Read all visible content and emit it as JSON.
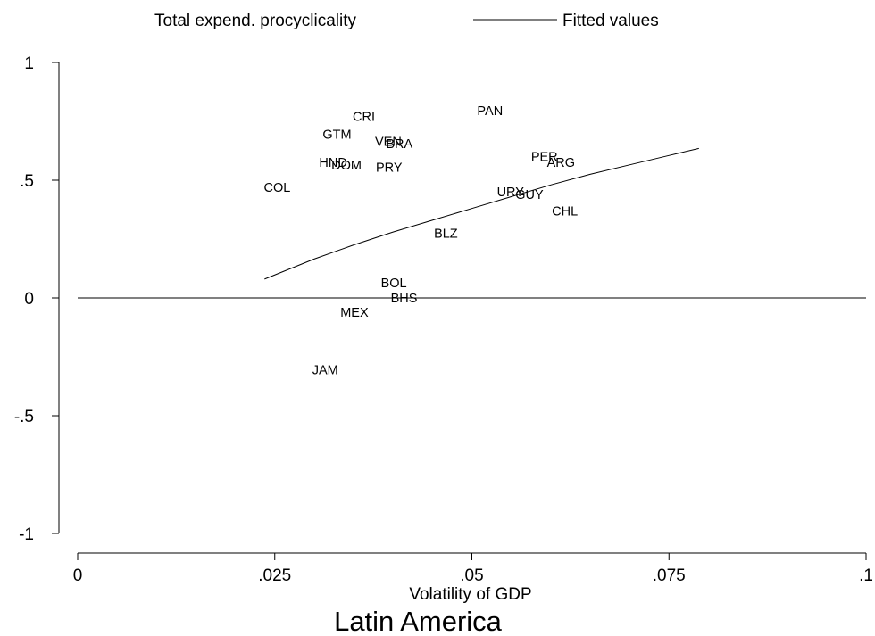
{
  "chart_data": {
    "type": "scatter",
    "xlabel": "Volatility of GDP",
    "ylabel": "",
    "note": "Latin America",
    "xlim": [
      0,
      0.1
    ],
    "ylim": [
      -1,
      1
    ],
    "x_ticks": [
      {
        "value": 0,
        "label": "0"
      },
      {
        "value": 0.025,
        "label": ".025"
      },
      {
        "value": 0.05,
        "label": ".05"
      },
      {
        "value": 0.075,
        "label": ".075"
      },
      {
        "value": 0.1,
        "label": ".1"
      }
    ],
    "y_ticks": [
      {
        "value": 1,
        "label": "1"
      },
      {
        "value": 0.5,
        "label": ".5"
      },
      {
        "value": 0,
        "label": "0"
      },
      {
        "value": -0.5,
        "label": "-.5"
      },
      {
        "value": -1,
        "label": "-1"
      }
    ],
    "reference_line_y": 0,
    "legend": {
      "placement": "top",
      "items": [
        {
          "label": "Total expend. procyclicality",
          "marker": "none"
        },
        {
          "label": "Fitted values",
          "marker": "line"
        }
      ]
    },
    "points": [
      {
        "label": "COL",
        "x": 0.0253,
        "y": 0.47
      },
      {
        "label": "CRI",
        "x": 0.0363,
        "y": 0.77
      },
      {
        "label": "GTM",
        "x": 0.0329,
        "y": 0.695
      },
      {
        "label": "HND",
        "x": 0.0324,
        "y": 0.575
      },
      {
        "label": "DOM",
        "x": 0.0341,
        "y": 0.565
      },
      {
        "label": "VEN",
        "x": 0.0394,
        "y": 0.665
      },
      {
        "label": "BRA",
        "x": 0.0408,
        "y": 0.655
      },
      {
        "label": "PRY",
        "x": 0.0395,
        "y": 0.555
      },
      {
        "label": "PAN",
        "x": 0.0523,
        "y": 0.795
      },
      {
        "label": "PER",
        "x": 0.0592,
        "y": 0.6
      },
      {
        "label": "ARG",
        "x": 0.0613,
        "y": 0.575
      },
      {
        "label": "URY",
        "x": 0.0549,
        "y": 0.45
      },
      {
        "label": "GUY",
        "x": 0.0573,
        "y": 0.44
      },
      {
        "label": "CHL",
        "x": 0.0618,
        "y": 0.37
      },
      {
        "label": "BLZ",
        "x": 0.0467,
        "y": 0.275
      },
      {
        "label": "BOL",
        "x": 0.0401,
        "y": 0.065
      },
      {
        "label": "BHS",
        "x": 0.0414,
        "y": 0.0
      },
      {
        "label": "MEX",
        "x": 0.0351,
        "y": -0.06
      },
      {
        "label": "JAM",
        "x": 0.0314,
        "y": -0.305
      }
    ],
    "fitted_line": {
      "name": "Fitted values",
      "x": [
        0.0237,
        0.03,
        0.035,
        0.04,
        0.045,
        0.05,
        0.055,
        0.06,
        0.065,
        0.07,
        0.075,
        0.0788
      ],
      "y": [
        0.08,
        0.165,
        0.225,
        0.28,
        0.33,
        0.38,
        0.43,
        0.48,
        0.525,
        0.565,
        0.605,
        0.635
      ]
    }
  }
}
